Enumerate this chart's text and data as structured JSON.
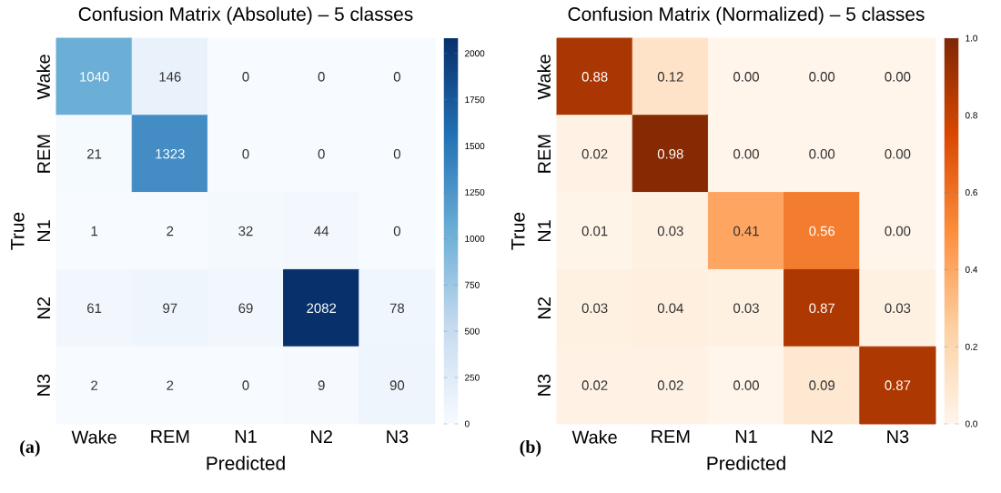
{
  "chart_data": [
    {
      "type": "heatmap",
      "title": "Confusion Matrix (Absolute) – 5 classes",
      "xlabel": "Predicted",
      "ylabel": "True",
      "categories": [
        "Wake",
        "REM",
        "N1",
        "N2",
        "N3"
      ],
      "y_categories": [
        "Wake",
        "REM",
        "N1",
        "N2",
        "N3"
      ],
      "cells": [
        [
          1040,
          146,
          0,
          0,
          0
        ],
        [
          21,
          1323,
          0,
          0,
          0
        ],
        [
          1,
          2,
          32,
          44,
          0
        ],
        [
          61,
          97,
          69,
          2082,
          78
        ],
        [
          2,
          2,
          0,
          9,
          90
        ]
      ],
      "data_labels": true,
      "clim": [
        0,
        2082
      ],
      "cticks": [
        0,
        250,
        500,
        750,
        1000,
        1250,
        1500,
        1750,
        2000
      ],
      "colors": [
        "#f7fbff",
        "#c6dbef",
        "#6baed6",
        "#2171b5",
        "#08306b"
      ],
      "annotations": [
        "(a)"
      ]
    },
    {
      "type": "heatmap",
      "title": "Confusion Matrix (Normalized) – 5 classes",
      "xlabel": "Predicted",
      "ylabel": "True",
      "categories": [
        "Wake",
        "REM",
        "N1",
        "N2",
        "N3"
      ],
      "y_categories": [
        "Wake",
        "REM",
        "N1",
        "N2",
        "N3"
      ],
      "cells": [
        [
          0.88,
          0.12,
          0.0,
          0.0,
          0.0
        ],
        [
          0.02,
          0.98,
          0.0,
          0.0,
          0.0
        ],
        [
          0.01,
          0.03,
          0.41,
          0.56,
          0.0
        ],
        [
          0.03,
          0.04,
          0.03,
          0.87,
          0.03
        ],
        [
          0.02,
          0.02,
          0.0,
          0.09,
          0.87
        ]
      ],
      "cell_labels": [
        [
          "0.88",
          "0.12",
          "0.00",
          "0.00",
          "0.00"
        ],
        [
          "0.02",
          "0.98",
          "0.00",
          "0.00",
          "0.00"
        ],
        [
          "0.01",
          "0.03",
          "0.41",
          "0.56",
          "0.00"
        ],
        [
          "0.03",
          "0.04",
          "0.03",
          "0.87",
          "0.03"
        ],
        [
          "0.02",
          "0.02",
          "0.00",
          "0.09",
          "0.87"
        ]
      ],
      "clim": [
        0,
        1
      ],
      "cticks": [
        {
          "value": 0,
          "label": "0.0"
        },
        {
          "value": 0.2,
          "label": "0.2"
        },
        {
          "value": 0.4,
          "label": "0.4"
        },
        {
          "value": 0.6,
          "label": "0.6"
        },
        {
          "value": 0.8,
          "label": "0.8"
        },
        {
          "value": 1,
          "label": "1.0"
        }
      ],
      "colors": [
        "#fff5eb",
        "#fdd0a2",
        "#fd8d3c",
        "#d94801",
        "#7f2704"
      ],
      "annotations": [
        "(b)"
      ]
    }
  ]
}
